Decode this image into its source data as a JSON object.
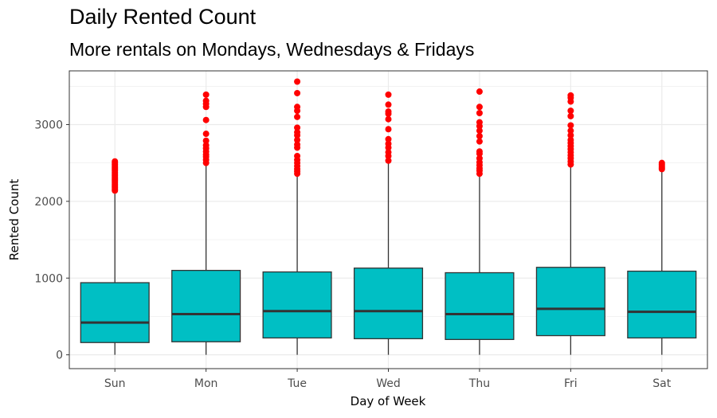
{
  "chart_data": {
    "type": "boxplot",
    "title": "Daily Rented Count",
    "subtitle": "More rentals on Mondays, Wednesdays & Fridays",
    "xlabel": "Day of Week",
    "ylabel": "Rented Count",
    "ylim": [
      -180,
      3700
    ],
    "yticks": [
      0,
      1000,
      2000,
      3000
    ],
    "grid": true,
    "colors": {
      "box_fill": "#00BFC4",
      "box_stroke": "#333333",
      "outlier": "#FF0000",
      "grid": "#EBEBEB",
      "panel_border": "#333333"
    },
    "categories": [
      "Sun",
      "Mon",
      "Tue",
      "Wed",
      "Thu",
      "Fri",
      "Sat"
    ],
    "boxes": [
      {
        "category": "Sun",
        "min": 0,
        "q1": 160,
        "median": 420,
        "q3": 940,
        "whisker_high": 2100,
        "outliers": [
          2140,
          2160,
          2180,
          2200,
          2220,
          2240,
          2260,
          2280,
          2300,
          2320,
          2340,
          2360,
          2380,
          2400,
          2420,
          2440,
          2460,
          2480,
          2500,
          2520
        ]
      },
      {
        "category": "Mon",
        "min": 0,
        "q1": 170,
        "median": 530,
        "q3": 1100,
        "whisker_high": 2480,
        "outliers": [
          2500,
          2540,
          2580,
          2610,
          2650,
          2690,
          2730,
          2790,
          2880,
          3060,
          3230,
          3270,
          3310,
          3390
        ]
      },
      {
        "category": "Tue",
        "min": 0,
        "q1": 220,
        "median": 570,
        "q3": 1080,
        "whisker_high": 2350,
        "outliers": [
          2360,
          2390,
          2420,
          2460,
          2500,
          2540,
          2590,
          2700,
          2740,
          2800,
          2860,
          2900,
          2960,
          3100,
          3180,
          3230,
          3410,
          3560
        ]
      },
      {
        "category": "Wed",
        "min": 0,
        "q1": 210,
        "median": 570,
        "q3": 1130,
        "whisker_high": 2500,
        "outliers": [
          2530,
          2590,
          2640,
          2700,
          2750,
          2810,
          2940,
          3070,
          3140,
          3170,
          3260,
          3390
        ]
      },
      {
        "category": "Thu",
        "min": 0,
        "q1": 200,
        "median": 530,
        "q3": 1070,
        "whisker_high": 2340,
        "outliers": [
          2360,
          2400,
          2430,
          2470,
          2510,
          2560,
          2620,
          2650,
          2780,
          2850,
          2920,
          2980,
          3030,
          3150,
          3230,
          3430
        ]
      },
      {
        "category": "Fri",
        "min": 0,
        "q1": 250,
        "median": 600,
        "q3": 1140,
        "whisker_high": 2460,
        "outliers": [
          2480,
          2520,
          2560,
          2600,
          2640,
          2680,
          2720,
          2760,
          2800,
          2860,
          2920,
          2990,
          3110,
          3180,
          3300,
          3350,
          3380
        ]
      },
      {
        "category": "Sat",
        "min": 0,
        "q1": 220,
        "median": 560,
        "q3": 1090,
        "whisker_high": 2400,
        "outliers": [
          2420,
          2440,
          2460,
          2480,
          2500
        ]
      }
    ]
  }
}
